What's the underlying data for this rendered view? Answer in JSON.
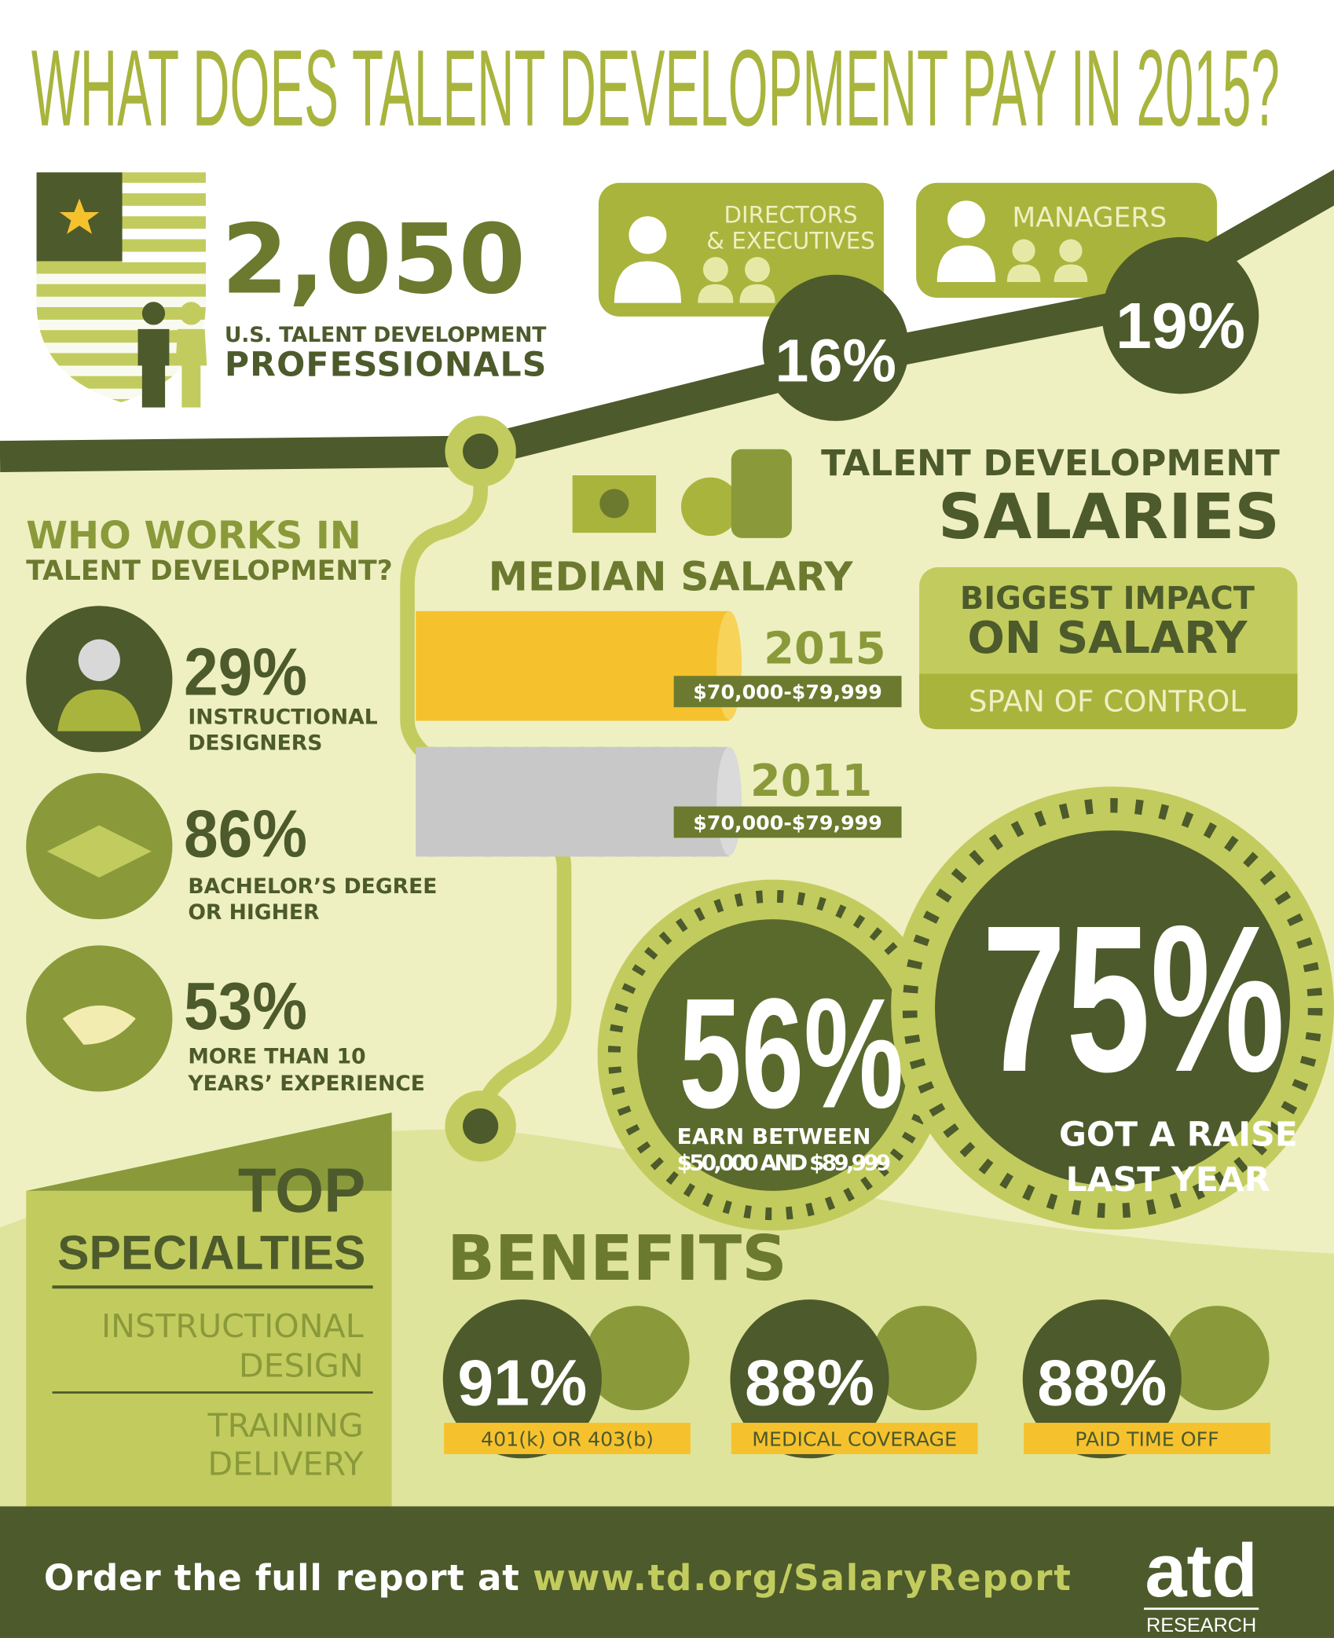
{
  "title": "WHAT DOES TALENT DEVELOPMENT PAY IN 2015?",
  "headline": {
    "number": "2,050",
    "line1": "U.S. TALENT DEVELOPMENT",
    "line2": "PROFESSIONALS"
  },
  "roles": [
    {
      "lines": [
        "DIRECTORS",
        "& EXECUTIVES"
      ],
      "percent": "16%"
    },
    {
      "lines": [
        "MANAGERS"
      ],
      "percent": "19%"
    }
  ],
  "who_works": {
    "title_lines": [
      "WHO WORKS IN",
      "TALENT DEVELOPMENT?"
    ],
    "items": [
      {
        "percent": "29%",
        "lines": [
          "INSTRUCTIONAL",
          "DESIGNERS"
        ]
      },
      {
        "percent": "86%",
        "lines": [
          "BACHELOR’S DEGREE",
          "OR HIGHER"
        ]
      },
      {
        "percent": "53%",
        "lines": [
          "MORE THAN 10",
          "YEARS’ EXPERIENCE"
        ]
      }
    ]
  },
  "salaries": {
    "title_lines": [
      "TALENT DEVELOPMENT",
      "SALARIES"
    ],
    "median_label": "MEDIAN SALARY",
    "years": [
      {
        "year": "2015",
        "range": "$70,000-$79,999"
      },
      {
        "year": "2011",
        "range": "$70,000-$79,999"
      }
    ],
    "impact": {
      "title_lines": [
        "BIGGEST IMPACT",
        "ON SALARY"
      ],
      "value": "SPAN OF CONTROL"
    }
  },
  "stats": [
    {
      "percent": "56%",
      "lines": [
        "EARN BETWEEN",
        "$50,000 AND $89,999"
      ]
    },
    {
      "percent": "75%",
      "lines": [
        "GOT A RAISE",
        "LAST YEAR"
      ]
    }
  ],
  "specialties": {
    "title_lines": [
      "TOP",
      "SPECIALTIES"
    ],
    "items": [
      [
        "INSTRUCTIONAL",
        "DESIGN"
      ],
      [
        "TRAINING",
        "DELIVERY"
      ]
    ]
  },
  "benefits": {
    "title": "BENEFITS",
    "items": [
      {
        "percent": "91%",
        "label": "401(k) OR 403(b)"
      },
      {
        "percent": "88%",
        "label": "MEDICAL COVERAGE"
      },
      {
        "percent": "88%",
        "label": "PAID TIME OFF"
      }
    ]
  },
  "footer": {
    "prefix": "Order the full report at",
    "url": "www.td.org/SalaryReport",
    "logo": "atd",
    "logo_sub": "RESEARCH"
  }
}
